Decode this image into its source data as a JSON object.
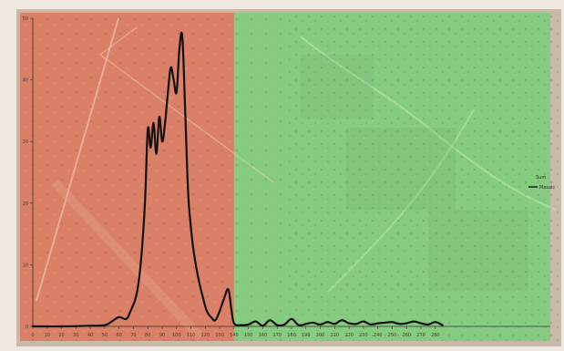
{
  "chart_data": {
    "type": "line",
    "title": "",
    "xlabel": "",
    "ylabel": "",
    "xlim": [
      0,
      360
    ],
    "ylim": [
      0,
      50
    ],
    "x_ticks": [
      0,
      10,
      20,
      30,
      40,
      50,
      60,
      70,
      80,
      90,
      100,
      110,
      120,
      130,
      140,
      150,
      160,
      170,
      180,
      190,
      200,
      210,
      220,
      230,
      240,
      250,
      260,
      270,
      280
    ],
    "y_ticks": [
      0,
      10,
      20,
      30,
      40,
      50
    ],
    "grid": false,
    "legend": {
      "placement": "right",
      "title": "Sum",
      "entries": [
        "Mosaic"
      ]
    },
    "background_regions": [
      {
        "name": "red-shaded-region",
        "x_range": [
          0,
          140
        ],
        "color": "#d98066"
      },
      {
        "name": "green-shaded-region",
        "x_range": [
          140,
          360
        ],
        "color": "#86cc80"
      }
    ],
    "series": [
      {
        "name": "Mosaic",
        "color": "#111111",
        "x": [
          0,
          20,
          40,
          50,
          55,
          60,
          65,
          68,
          72,
          75,
          78,
          80,
          82,
          84,
          86,
          88,
          90,
          92,
          94,
          96,
          98,
          100,
          102,
          104,
          106,
          108,
          110,
          112,
          115,
          118,
          121,
          124,
          127,
          130,
          133,
          136,
          138,
          140,
          145,
          150,
          155,
          160,
          165,
          170,
          175,
          180,
          185,
          190,
          195,
          200,
          205,
          210,
          215,
          220,
          225,
          230,
          235,
          240,
          245,
          250,
          255,
          260,
          265,
          270,
          275,
          280,
          285
        ],
        "y": [
          0,
          0,
          0.1,
          0.2,
          0.8,
          1.5,
          1.2,
          2.5,
          5,
          10,
          20,
          32,
          29,
          33,
          28,
          34,
          30,
          33,
          38,
          42,
          40,
          38,
          45,
          47,
          35,
          22,
          16,
          12,
          8,
          5,
          2.5,
          1.5,
          1,
          2.5,
          4.5,
          6,
          3,
          0.5,
          0.2,
          0.3,
          0.8,
          0.1,
          1.0,
          0.2,
          0.3,
          1.2,
          0.2,
          0.4,
          0.6,
          0.3,
          0.7,
          0.4,
          1.0,
          0.5,
          0.4,
          0.8,
          0.3,
          0.5,
          0.6,
          0.7,
          0.4,
          0.5,
          0.8,
          0.5,
          0.3,
          0.7,
          0.2
        ]
      }
    ]
  }
}
